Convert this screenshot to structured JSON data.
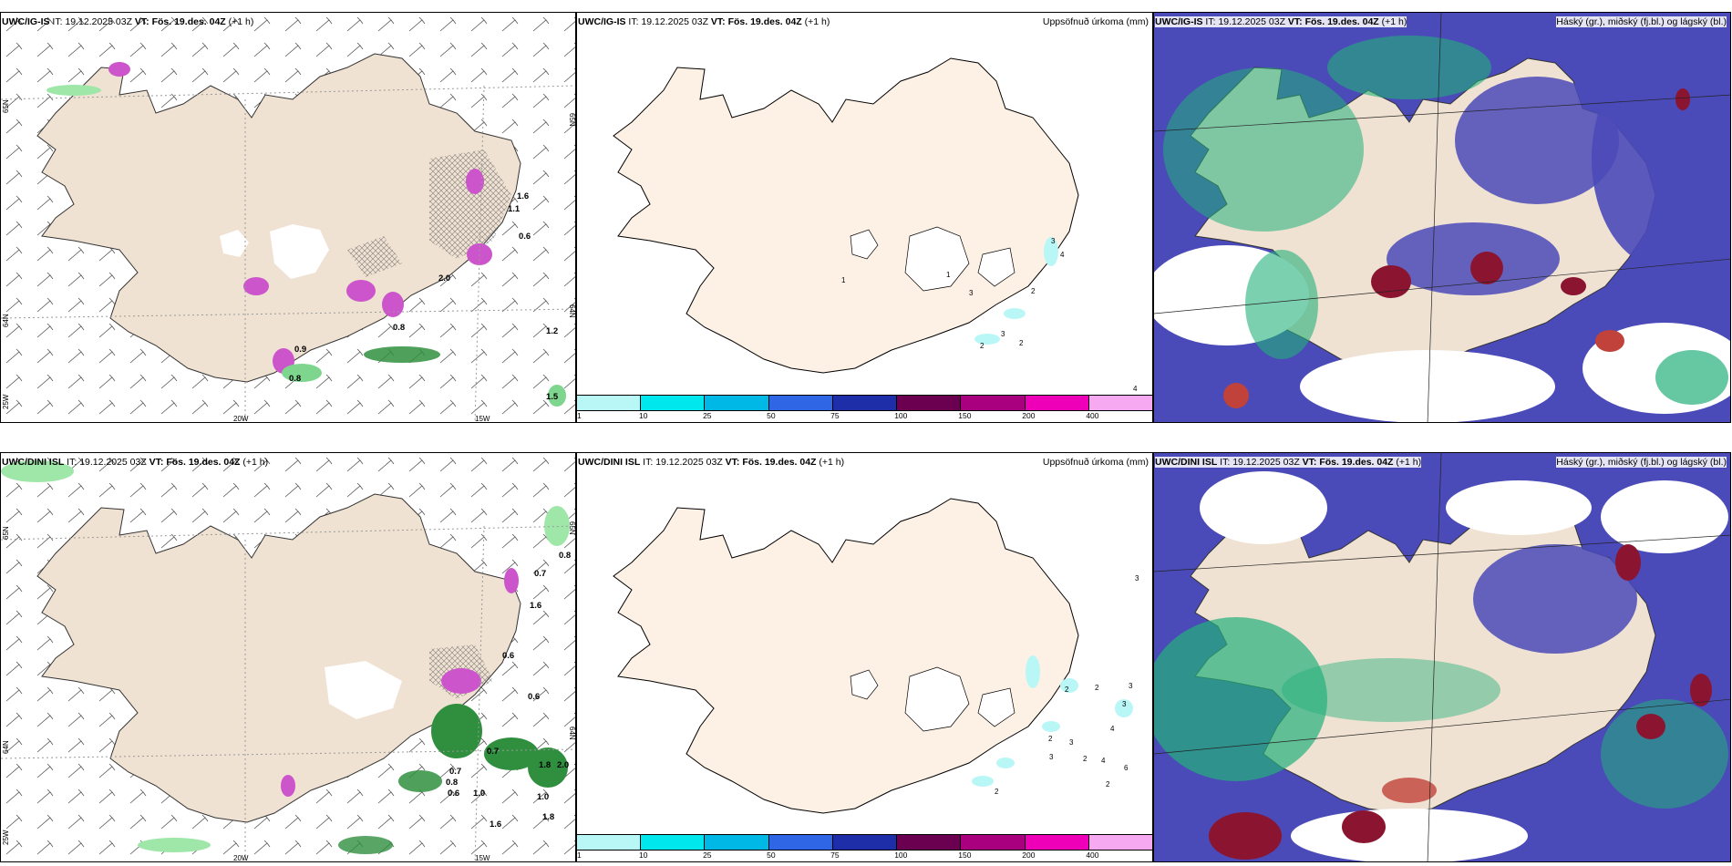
{
  "panels": [
    {
      "id": "p1",
      "model": "UWC/IG-IS",
      "it_label": "IT:",
      "it": "19.12.2025 03Z",
      "vt_label": "VT:",
      "vt": "Fös. 19.des. 04Z",
      "lead": "(+1 h)",
      "right_title": "",
      "precip_labels": [
        "0.9",
        "0.8",
        "1.6",
        "1.1",
        "0.6",
        "1.2",
        "1.5",
        "2.0",
        "0.8"
      ],
      "lat_labels": [
        "65N",
        "64N"
      ],
      "lon_labels": [
        "20W",
        "15W"
      ],
      "left_axis": [
        "65N",
        "64N",
        "25W"
      ]
    },
    {
      "id": "p2",
      "model": "UWC/IG-IS",
      "it_label": "IT:",
      "it": "19.12.2025 03Z",
      "vt_label": "VT:",
      "vt": "Fös. 19.des. 04Z",
      "lead": "(+1 h)",
      "right_title": "Uppsöfnuð úrkoma (mm)",
      "accum_labels": [
        "1",
        "3",
        "4",
        "2",
        "3",
        "2",
        "2",
        "1",
        "3",
        "4"
      ]
    },
    {
      "id": "p3",
      "model": "UWC/IG-IS",
      "it_label": "IT:",
      "it": "19.12.2025 03Z",
      "vt_label": "VT:",
      "vt": "Fös. 19.des. 04Z",
      "lead": "(+1 h)",
      "right_title": "Háský (gr.), miðský (fj.bl.) og lágský (bl.)"
    },
    {
      "id": "p4",
      "model": "UWC/DINI ISL",
      "it_label": "IT:",
      "it": "19.12.2025 03Z",
      "vt_label": "VT:",
      "vt": "Fös. 19.des. 04Z",
      "lead": "(+1 h)",
      "right_title": "",
      "precip_labels": [
        "0.8",
        "0.7",
        "1.6",
        "0.6",
        "0.6",
        "0.7",
        "0.7",
        "0.8",
        "0.6",
        "1.0",
        "1.0",
        "1.8",
        "1.6",
        "1.8",
        "2.0"
      ],
      "lat_labels": [
        "65N",
        "64N"
      ],
      "lon_labels": [
        "20W",
        "15W"
      ],
      "left_axis": [
        "65N",
        "64N",
        "25W"
      ]
    },
    {
      "id": "p5",
      "model": "UWC/DINI ISL",
      "it_label": "IT:",
      "it": "19.12.2025 03Z",
      "vt_label": "VT:",
      "vt": "Fös. 19.des. 04Z",
      "lead": "(+1 h)",
      "right_title": "Uppsöfnuð úrkoma (mm)",
      "accum_labels": [
        "3",
        "2",
        "2",
        "4",
        "2",
        "3",
        "3",
        "2",
        "4",
        "6",
        "3",
        "2",
        "2",
        "3"
      ]
    },
    {
      "id": "p6",
      "model": "UWC/DINI ISL",
      "it_label": "IT:",
      "it": "19.12.2025 03Z",
      "vt_label": "VT:",
      "vt": "Fös. 19.des. 04Z",
      "lead": "(+1 h)",
      "right_title": "Háský (gr.), miðský (fj.bl.) og lágský (bl.)"
    }
  ],
  "colorbar": {
    "ticks": [
      "1",
      "10",
      "25",
      "50",
      "75",
      "100",
      "150",
      "200",
      "400"
    ],
    "colors": [
      "#b9f7f7",
      "#00e8ee",
      "#00b8e6",
      "#2e66e6",
      "#1e2ea8",
      "#6b0050",
      "#a8007e",
      "#ee00b8",
      "#f6a8f0"
    ]
  },
  "colors": {
    "land": "#f0e2d2",
    "land_accum": "#fdf0e4",
    "cloud_high": "#23b07a",
    "cloud_mid": "#4a4ab8",
    "cloud_low": "#ffffff",
    "precip_green": "#2f8f3e",
    "precip_pink": "#cc55cc",
    "heavy": "#8b1530"
  }
}
